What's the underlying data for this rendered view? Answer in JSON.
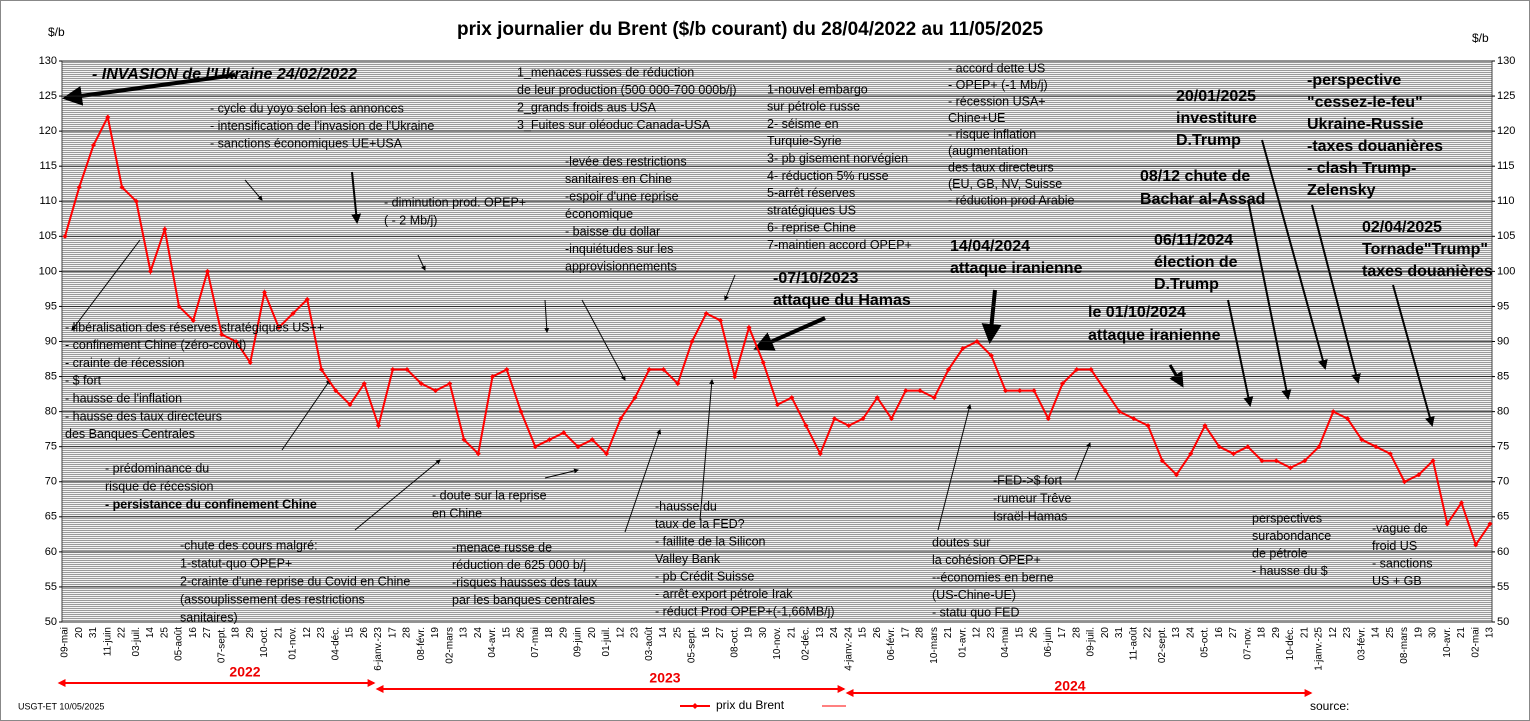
{
  "chart_data": {
    "type": "line",
    "title": "prix  journalier du  Brent ($/b courant) du 28/04/2022  au  11/05/2025",
    "y_axis_label": "$/b",
    "y2_axis_label": "$/b",
    "categories": [
      "09-mai",
      "20",
      "31",
      "11-juin",
      "22",
      "03-juil.",
      "14",
      "25",
      "05-août",
      "16",
      "27",
      "07-sept.",
      "18",
      "29",
      "10-oct.",
      "21",
      "01-nov.",
      "12",
      "23",
      "04-déc.",
      "15",
      "26",
      "6-janv.-23",
      "17",
      "28",
      "08-févr.",
      "19",
      "02-mars",
      "13",
      "24",
      "04-avr.",
      "15",
      "26",
      "07-mai",
      "18",
      "29",
      "09-juin",
      "20",
      "01-juil.",
      "12",
      "23",
      "03-août",
      "14",
      "25",
      "05-sept.",
      "16",
      "27",
      "08-oct.",
      "19",
      "30",
      "10-nov.",
      "21",
      "02-déc.",
      "13",
      "24",
      "4-janv.-24",
      "15",
      "26",
      "06-févr.",
      "17",
      "28",
      "10-mars",
      "21",
      "01-avr.",
      "12",
      "23",
      "04-mai",
      "15",
      "26",
      "06-juin",
      "17",
      "28",
      "09-juil.",
      "20",
      "31",
      "11-août",
      "22",
      "02-sept.",
      "13",
      "24",
      "05-oct.",
      "16",
      "27",
      "07-nov.",
      "18",
      "29",
      "10-déc.",
      "21",
      "1-janv.-25",
      "12",
      "23",
      "03-févr.",
      "14",
      "25",
      "08-mars",
      "19",
      "30",
      "10-avr.",
      "21",
      "02-mai",
      "13"
    ],
    "series": [
      {
        "name": "prix du Brent",
        "color": "#ff0000",
        "values": [
          105,
          112,
          118,
          122,
          112,
          110,
          100,
          106,
          95,
          93,
          100,
          91,
          90,
          87,
          97,
          92,
          94,
          96,
          86,
          83,
          81,
          84,
          78,
          86,
          86,
          84,
          83,
          84,
          76,
          74,
          85,
          86,
          80,
          75,
          76,
          77,
          75,
          76,
          74,
          79,
          82,
          86,
          86,
          84,
          90,
          94,
          93,
          85,
          92,
          87,
          81,
          82,
          78,
          74,
          79,
          78,
          79,
          82,
          79,
          83,
          83,
          82,
          86,
          89,
          90,
          88,
          83,
          83,
          83,
          79,
          84,
          86,
          86,
          83,
          80,
          79,
          78,
          73,
          71,
          74,
          78,
          75,
          74,
          75,
          73,
          73,
          72,
          73,
          75,
          80,
          79,
          76,
          75,
          74,
          70,
          71,
          73,
          64,
          67,
          61,
          64
        ]
      }
    ],
    "ylim": [
      50,
      130
    ],
    "yticks": [
      50,
      55,
      60,
      65,
      70,
      75,
      80,
      85,
      90,
      95,
      100,
      105,
      110,
      115,
      120,
      125,
      130
    ],
    "y2lim": [
      50,
      130
    ],
    "y2ticks": [
      50,
      55,
      60,
      65,
      70,
      75,
      80,
      85,
      90,
      95,
      100,
      105,
      110,
      115,
      120,
      125,
      130
    ],
    "grid": true,
    "years": [
      "2022",
      "2023",
      "2024"
    ],
    "footer": "USGT-ET  10/05/2025",
    "source": "source:",
    "annotations": [
      [
        "- INVASION de l'Ukraine 24/02/2022"
      ],
      [
        "- cycle du yoyo selon les annonces",
        "- intensification de l'invasion de l'Ukraine",
        "- sanctions économiques UE+USA"
      ],
      [
        "1_menaces russes de réduction",
        "de leur production (500 000-700 000b/j)",
        "2_grands froids aus USA",
        "3_Fuites sur oléoduc Canada-USA"
      ],
      [
        "1-nouvel embargo",
        "sur pétrole russe",
        "2- séisme  en",
        "Turquie-Syrie",
        "3- pb gisement norvégien",
        "4- réduction 5% russe",
        "5-arrêt réserves",
        "stratégiques US",
        "6- reprise Chine",
        "7-maintien accord OPEP+"
      ],
      [
        "- accord dette US",
        "- OPEP+ (-1 Mb/j)",
        "- récession  USA+",
        "Chine+UE",
        "- risque inflation",
        "(augmentation",
        "des taux directeurs",
        "(EU, GB, NV, Suisse",
        "- réduction prod Arabie"
      ],
      [
        "20/01/2025",
        "investiture",
        "D.Trump"
      ],
      [
        "-perspective",
        "\"cessez-le-feu\"",
        "Ukraine-Russie",
        "-taxes douanières",
        "- clash Trump-",
        "Zelensky"
      ],
      [
        "- diminution prod. OPEP+",
        "( - 2 Mb/j)"
      ],
      [
        "-levée des restrictions",
        "sanitaires en Chine",
        "-espoir d'une reprise",
        "économique",
        "- baisse du dollar",
        "-inquiétudes sur  les",
        "approvisionnements"
      ],
      [
        "08/12 chute de",
        "Bachar al-Assad"
      ],
      [
        "14/04/2024",
        "attaque iranienne"
      ],
      [
        "06/11/2024",
        "élection de",
        "D.Trump"
      ],
      [
        "02/04/2025",
        "Tornade\"Trump\"",
        "taxes douanières"
      ],
      [
        "-07/10/2023",
        "attaque  du Hamas"
      ],
      [
        "le 01/10/2024",
        "attaque iranienne"
      ],
      [
        "- libéralisation des réserves stratégiques US++",
        "- confinement Chine (zéro-covid)",
        "- crainte de récession",
        "- $ fort",
        "- hausse de l'inflation",
        "- hausse des taux directeurs",
        "des Banques Centrales"
      ],
      [
        "- prédominance du",
        "risque de récession",
        "- persistance du confinement Chine"
      ],
      [
        "- doute sur la reprise",
        "en Chine"
      ],
      [
        "-hausse du",
        "taux de la FED?",
        "- faillite de la Silicon",
        "Valley Bank",
        "- pb Crédit Suisse",
        "- arrêt export pétrole Irak",
        "- réduct Prod OPEP+(-1,66MB/j)"
      ],
      [
        "-FED->$ fort",
        "-rumeur Trêve",
        "Israël-Hamas"
      ],
      [
        "perspectives",
        "surabondance",
        "de pétrole",
        "- hausse du $"
      ],
      [
        "-vague de",
        "froid US",
        "- sanctions",
        "US + GB"
      ],
      [
        "-chute des cours malgré:",
        "1-statut-quo OPEP+",
        "2-crainte d'une reprise du Covid en Chine",
        "(assouplissement des restrictions",
        "sanitaires)"
      ],
      [
        "-menace russe de",
        "réduction de 625 000  b/j",
        "-risques hausses des taux",
        "par les banques centrales"
      ],
      [
        "doutes sur",
        "la cohésion  OPEP+",
        "--économies en berne",
        "(US-Chine-UE)",
        "- statu quo FED"
      ]
    ]
  }
}
